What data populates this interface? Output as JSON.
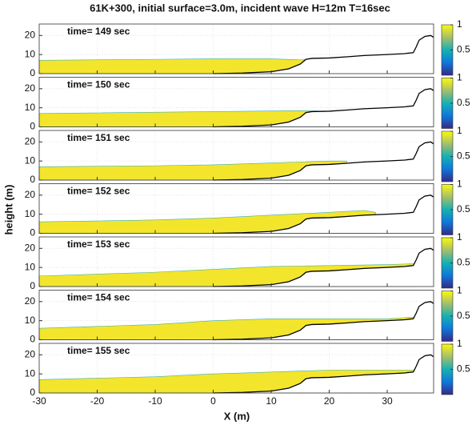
{
  "figure": {
    "title": "61K+300,  initial surface=3.0m,  incident wave H=12m  T=16sec",
    "x_label": "X (m)",
    "y_label": "height (m)"
  },
  "chart_data": [
    {
      "type": "area",
      "label": "time= 149 sec",
      "xlim": [
        -30,
        38
      ],
      "xticks": [
        -30,
        -20,
        -10,
        0,
        10,
        20,
        30
      ],
      "show_xtick_labels": false,
      "ylim": [
        0,
        26
      ],
      "yticks": [
        0,
        10,
        20
      ],
      "grid": true,
      "clim": [
        0,
        1
      ],
      "cticks": [
        0.5,
        1
      ],
      "series": [
        {
          "color": "#f3e52c",
          "x": [
            -30,
            -10,
            0,
            10,
            15,
            16.5
          ],
          "values": [
            7,
            7.5,
            7.8,
            7.8,
            7.2,
            7.6
          ]
        },
        {
          "color": "#000000",
          "x": [
            0,
            5,
            10,
            13,
            15,
            16,
            17,
            20,
            23,
            26,
            30,
            33,
            34.5,
            35,
            35.5,
            36.5,
            37.5,
            38
          ],
          "values": [
            0,
            0.3,
            1,
            2.5,
            5,
            7.5,
            8,
            8.2,
            8.8,
            9.5,
            10,
            10.5,
            11,
            14,
            17.5,
            19.5,
            20,
            19
          ]
        }
      ]
    },
    {
      "type": "area",
      "label": "time= 150 sec",
      "xlim": [
        -30,
        38
      ],
      "xticks": [
        -30,
        -20,
        -10,
        0,
        10,
        20,
        30
      ],
      "show_xtick_labels": false,
      "ylim": [
        0,
        26
      ],
      "yticks": [
        0,
        10,
        20
      ],
      "grid": true,
      "clim": [
        0,
        1
      ],
      "cticks": [
        0.5,
        1
      ],
      "series": [
        {
          "color": "#f3e52c",
          "x": [
            -30,
            0,
            15,
            18,
            19
          ],
          "values": [
            7,
            8,
            8.5,
            8.3,
            8
          ]
        },
        {
          "color": "#000000",
          "x": [
            0,
            5,
            10,
            13,
            15,
            16,
            17,
            20,
            23,
            26,
            30,
            33,
            34.5,
            35,
            35.5,
            36.5,
            37.5,
            38
          ],
          "values": [
            0,
            0.3,
            1,
            2.5,
            5,
            7.5,
            8,
            8.2,
            8.8,
            9.5,
            10,
            10.5,
            11,
            14,
            17.5,
            19.5,
            20,
            19
          ]
        }
      ]
    },
    {
      "type": "area",
      "label": "time= 151 sec",
      "xlim": [
        -30,
        38
      ],
      "xticks": [
        -30,
        -20,
        -10,
        0,
        10,
        20,
        30
      ],
      "show_xtick_labels": false,
      "ylim": [
        0,
        26
      ],
      "yticks": [
        0,
        10,
        20
      ],
      "grid": true,
      "clim": [
        0,
        1
      ],
      "cticks": [
        0.5,
        1
      ],
      "series": [
        {
          "color": "#f3e52c",
          "x": [
            -30,
            -10,
            0,
            10,
            20,
            23
          ],
          "values": [
            7,
            7.5,
            8,
            9,
            10,
            10
          ]
        },
        {
          "color": "#000000",
          "x": [
            0,
            5,
            10,
            13,
            15,
            16,
            17,
            20,
            23,
            26,
            30,
            33,
            34.5,
            35,
            35.5,
            36.5,
            37.5,
            38
          ],
          "values": [
            0,
            0.3,
            1,
            2.5,
            5,
            7.5,
            8,
            8.2,
            8.8,
            9.5,
            10,
            10.5,
            11,
            14,
            17.5,
            19.5,
            20,
            19
          ]
        }
      ]
    },
    {
      "type": "area",
      "label": "time= 152 sec",
      "xlim": [
        -30,
        38
      ],
      "xticks": [
        -30,
        -20,
        -10,
        0,
        10,
        20,
        30
      ],
      "show_xtick_labels": false,
      "ylim": [
        0,
        26
      ],
      "yticks": [
        0,
        10,
        20
      ],
      "grid": true,
      "clim": [
        0,
        1
      ],
      "cticks": [
        0.5,
        1
      ],
      "series": [
        {
          "color": "#f3e52c",
          "x": [
            -30,
            -10,
            0,
            10,
            20,
            26,
            28
          ],
          "values": [
            6,
            7,
            8,
            9.5,
            11,
            12,
            11
          ]
        },
        {
          "color": "#000000",
          "x": [
            0,
            5,
            10,
            13,
            15,
            16,
            17,
            20,
            23,
            26,
            30,
            33,
            34.5,
            35,
            35.5,
            36.5,
            37.5,
            38
          ],
          "values": [
            0,
            0.3,
            1,
            2.5,
            5,
            7.5,
            8,
            8.2,
            8.8,
            9.5,
            10,
            10.5,
            11,
            14,
            17.5,
            19.5,
            20,
            19
          ]
        }
      ]
    },
    {
      "type": "area",
      "label": "time= 153 sec",
      "xlim": [
        -30,
        38
      ],
      "xticks": [
        -30,
        -20,
        -10,
        0,
        10,
        20,
        30
      ],
      "show_xtick_labels": false,
      "ylim": [
        0,
        26
      ],
      "yticks": [
        0,
        10,
        20
      ],
      "grid": true,
      "clim": [
        0,
        1
      ],
      "cticks": [
        0.5,
        1
      ],
      "series": [
        {
          "color": "#f3e52c",
          "x": [
            -30,
            -10,
            0,
            10,
            20,
            30,
            35
          ],
          "values": [
            5.5,
            7.5,
            9,
            10.5,
            11,
            11.5,
            12
          ]
        },
        {
          "color": "#000000",
          "x": [
            0,
            5,
            10,
            13,
            15,
            16,
            17,
            20,
            23,
            26,
            30,
            33,
            34.5,
            35,
            35.5,
            36.5,
            37.5,
            38
          ],
          "values": [
            0,
            0.3,
            1,
            2.5,
            5,
            7.5,
            8,
            8.2,
            8.8,
            9.5,
            10,
            10.5,
            11,
            14,
            17.5,
            19.5,
            20,
            19
          ]
        }
      ]
    },
    {
      "type": "area",
      "label": "time= 154 sec",
      "xlim": [
        -30,
        38
      ],
      "xticks": [
        -30,
        -20,
        -10,
        0,
        10,
        20,
        30
      ],
      "show_xtick_labels": false,
      "ylim": [
        0,
        26
      ],
      "yticks": [
        0,
        10,
        20
      ],
      "grid": true,
      "clim": [
        0,
        1
      ],
      "cticks": [
        0.5,
        1
      ],
      "series": [
        {
          "color": "#f3e52c",
          "x": [
            -30,
            -10,
            0,
            10,
            20,
            30,
            35,
            36
          ],
          "values": [
            6,
            8,
            10,
            11,
            11,
            11,
            12,
            14
          ]
        },
        {
          "color": "#000000",
          "x": [
            0,
            5,
            10,
            13,
            15,
            16,
            17,
            20,
            23,
            26,
            30,
            33,
            34.5,
            35,
            35.5,
            36.5,
            37.5,
            38
          ],
          "values": [
            0,
            0.3,
            1,
            2.5,
            5,
            7.5,
            8,
            8.2,
            8.8,
            9.5,
            10,
            10.5,
            11,
            14,
            17.5,
            19.5,
            20,
            19
          ]
        }
      ]
    },
    {
      "type": "area",
      "label": "time= 155 sec",
      "xlim": [
        -30,
        38
      ],
      "xticks": [
        -30,
        -20,
        -10,
        0,
        10,
        20,
        30
      ],
      "show_xtick_labels": true,
      "ylim": [
        0,
        26
      ],
      "yticks": [
        0,
        10,
        20
      ],
      "grid": true,
      "clim": [
        0,
        1
      ],
      "cticks": [
        0.5,
        1
      ],
      "series": [
        {
          "color": "#f3e52c",
          "x": [
            -30,
            -10,
            0,
            10,
            20,
            30,
            35,
            35.5
          ],
          "values": [
            7,
            8.5,
            10,
            11,
            12,
            12,
            12,
            13
          ]
        },
        {
          "color": "#000000",
          "x": [
            0,
            5,
            10,
            13,
            15,
            16,
            17,
            20,
            23,
            26,
            30,
            33,
            34.5,
            35,
            35.5,
            36.5,
            37.5,
            38
          ],
          "values": [
            0,
            0.3,
            1,
            2.5,
            5,
            7.5,
            8,
            8.2,
            8.8,
            9.5,
            10,
            10.5,
            11,
            14,
            17.5,
            19.5,
            20,
            19
          ]
        }
      ]
    }
  ]
}
